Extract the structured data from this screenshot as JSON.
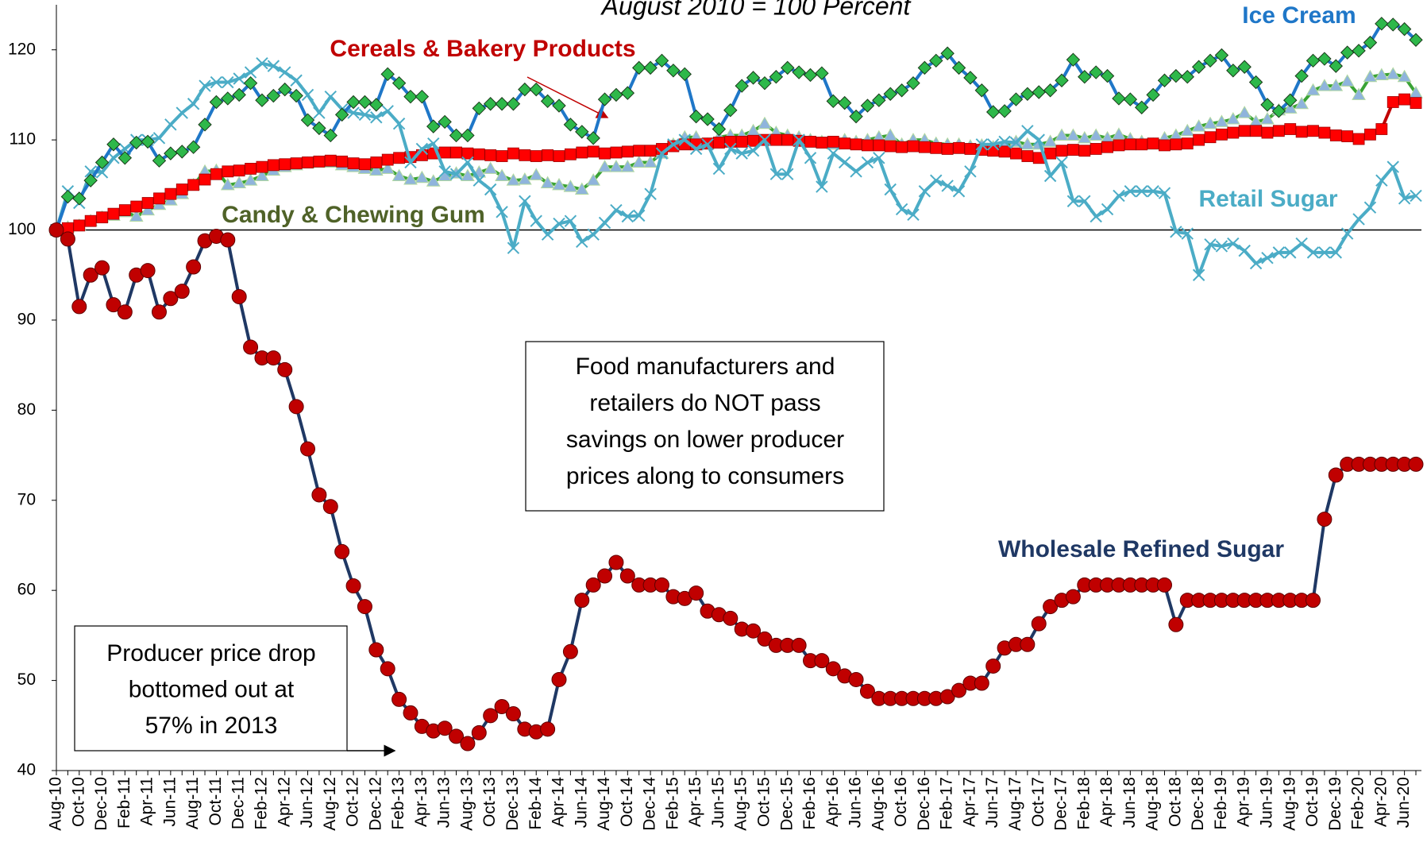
{
  "chart_data": {
    "type": "line",
    "title": "August 2010 = 100 Percent",
    "categories": [
      "Aug-10",
      null,
      "Oct-10",
      null,
      "Dec-10",
      null,
      "Feb-11",
      null,
      "Apr-11",
      null,
      "Jun-11",
      null,
      "Aug-11",
      null,
      "Oct-11",
      null,
      "Dec-11",
      null,
      "Feb-12",
      null,
      "Apr-12",
      null,
      "Jun-12",
      null,
      "Aug-12",
      null,
      "Oct-12",
      null,
      "Dec-12",
      null,
      "Feb-13",
      null,
      "Apr-13",
      null,
      "Jun-13",
      null,
      "Aug-13",
      null,
      "Oct-13",
      null,
      "Dec-13",
      null,
      "Feb-14",
      null,
      "Apr-14",
      null,
      "Jun-14",
      null,
      "Aug-14",
      null,
      "Oct-14",
      null,
      "Dec-14",
      null,
      "Feb-15",
      null,
      "Apr-15",
      null,
      "Jun-15",
      null,
      "Aug-15",
      null,
      "Oct-15",
      null,
      "Dec-15",
      null,
      "Feb-16",
      null,
      "Apr-16",
      null,
      "Jun-16",
      null,
      "Aug-16",
      null,
      "Oct-16",
      null,
      "Dec-16",
      null,
      "Feb-17",
      null,
      "Apr-17",
      null,
      "Jun-17",
      null,
      "Aug-17",
      null,
      "Oct-17",
      null,
      "Dec-17",
      null,
      "Feb-18",
      null,
      "Apr-18",
      null,
      "Jun-18",
      null,
      "Aug-18",
      null,
      "Oct-18",
      null,
      "Dec-18",
      null,
      "Feb-19",
      null,
      "Apr-19",
      null,
      "Jun-19",
      null,
      "Aug-19",
      null,
      "Oct-19",
      null,
      "Dec-19",
      null,
      "Feb-20",
      null,
      "Apr-20",
      null,
      "Jun-20",
      null
    ],
    "series": [
      {
        "name": "Candy & Chewing Gum",
        "color": "#3aa335",
        "marker_color": "#8fb4dc",
        "marker": "triangle",
        "label_color": "#4f6228",
        "values": [
          100,
          100.3,
          100.5,
          101,
          101.4,
          101.6,
          102,
          101.5,
          102.2,
          102.8,
          103.3,
          104,
          105,
          106.5,
          106.6,
          105,
          105.2,
          105.5,
          106,
          106.6,
          107,
          107.2,
          107.4,
          107.5,
          107.5,
          107.2,
          107,
          106.8,
          106.6,
          106.8,
          106,
          105.6,
          105.8,
          105.4,
          106,
          106.3,
          106,
          106.4,
          106.8,
          106,
          105.5,
          105.6,
          106.1,
          105.2,
          105,
          104.8,
          104.5,
          105.5,
          107,
          107,
          107,
          107.5,
          107.5,
          108.5,
          109.5,
          110.3,
          110.3,
          109.5,
          110.3,
          110.5,
          110.5,
          111,
          111.8,
          110.8,
          110.5,
          110.3,
          110,
          109.8,
          109.5,
          110,
          109.8,
          110,
          110.3,
          110.5,
          109.5,
          110,
          110,
          109.6,
          109.5,
          109.5,
          109.3,
          109.4,
          109.2,
          109.3,
          109.8,
          109.5,
          109.5,
          109.8,
          110.5,
          110.5,
          110.2,
          110.5,
          110.2,
          110.6,
          110.1,
          109.8,
          109.5,
          110.2,
          110.5,
          111,
          111.5,
          111.8,
          112,
          112.3,
          113,
          112,
          112.3,
          113.3,
          113.5,
          114,
          115.5,
          116,
          116,
          116.5,
          115,
          117,
          117.2,
          117.3,
          117,
          115.2
        ]
      },
      {
        "name": "Cereals & Bakery Products",
        "color": "#c00000",
        "marker_color": "#ff0000",
        "marker": "square",
        "label_color": "#c00000",
        "values": [
          100,
          100.2,
          100.5,
          101,
          101.4,
          101.8,
          102.2,
          102.6,
          103,
          103.5,
          104,
          104.5,
          105,
          105.6,
          106.2,
          106.5,
          106.6,
          106.8,
          107,
          107.2,
          107.3,
          107.4,
          107.5,
          107.6,
          107.7,
          107.6,
          107.4,
          107.3,
          107.5,
          107.8,
          108,
          108.1,
          108.3,
          108.5,
          108.6,
          108.6,
          108.5,
          108.4,
          108.3,
          108.2,
          108.5,
          108.3,
          108.2,
          108.3,
          108.2,
          108.4,
          108.6,
          108.7,
          108.5,
          108.6,
          108.7,
          108.8,
          108.8,
          109,
          109.3,
          109.5,
          109.5,
          109.6,
          109.7,
          109.8,
          109.8,
          109.9,
          110,
          110,
          110,
          109.9,
          109.8,
          109.7,
          109.8,
          109.6,
          109.5,
          109.4,
          109.4,
          109.3,
          109.2,
          109.3,
          109.2,
          109.1,
          109,
          109.1,
          109,
          108.9,
          108.8,
          108.7,
          108.5,
          108.2,
          108,
          108.5,
          108.8,
          108.9,
          108.8,
          109,
          109.2,
          109.4,
          109.5,
          109.5,
          109.6,
          109.4,
          109.5,
          109.6,
          110,
          110.3,
          110.6,
          110.8,
          111,
          111,
          110.8,
          111,
          111.2,
          110.9,
          111,
          110.8,
          110.5,
          110.4,
          110.1,
          110.6,
          111.2,
          114.2,
          114.5,
          114.1
        ]
      },
      {
        "name": "Retail Sugar",
        "color": "#4bacc6",
        "marker_color": "#4bacc6",
        "marker": "x",
        "label_color": "#4bacc6",
        "values": [
          100,
          104.3,
          103,
          106.5,
          106.4,
          108,
          109,
          110,
          110,
          110.2,
          111.7,
          113,
          114,
          116,
          116.4,
          116.4,
          116.8,
          117.5,
          118.5,
          118.2,
          117.5,
          116.6,
          115,
          113,
          114.8,
          113.4,
          113,
          112.8,
          112.5,
          113.2,
          111.8,
          107.5,
          109,
          109.6,
          106.5,
          106.2,
          107.5,
          105.5,
          104.5,
          102,
          98,
          103.2,
          101,
          99.5,
          100.7,
          101,
          98.7,
          99.5,
          100.8,
          102.2,
          101.5,
          101.6,
          104,
          108.5,
          109.5,
          110,
          109,
          109.5,
          106.8,
          109,
          108.5,
          108.8,
          110,
          106.2,
          106.2,
          110,
          108,
          104.8,
          108.5,
          107.5,
          106.5,
          107.5,
          108,
          104.5,
          102.3,
          101.7,
          104.3,
          105.5,
          104.9,
          104.3,
          106.5,
          109.5,
          109.5,
          109.8,
          109.7,
          111,
          110,
          106,
          107.5,
          103.2,
          103.2,
          101.5,
          102.3,
          103.8,
          104.3,
          104.3,
          104.3,
          104.1,
          99.8,
          99.6,
          95,
          98.4,
          98.2,
          98.5,
          97.7,
          96.3,
          96.9,
          97.5,
          97.5,
          98.5,
          97.5,
          97.5,
          97.5,
          99.6,
          101.2,
          102.5,
          105.5,
          107,
          103.5,
          103.8
        ]
      },
      {
        "name": "Ice Cream",
        "color": "#1f77c8",
        "marker_color": "#2eb84a",
        "marker": "diamond",
        "label_color": "#1f77c8",
        "values": [
          100,
          103.7,
          103.5,
          105.5,
          107.5,
          109.5,
          108,
          109.7,
          109.8,
          107.7,
          108.5,
          108.7,
          109.2,
          111.7,
          114.2,
          114.6,
          115,
          116.3,
          114.4,
          114.9,
          115.6,
          114.9,
          112.2,
          111.3,
          110.5,
          112.8,
          114.2,
          114.2,
          113.9,
          117.3,
          116.3,
          114.8,
          114.8,
          111.5,
          112,
          110.5,
          110.5,
          113.5,
          114,
          114,
          114,
          115.6,
          115.6,
          114.3,
          113.8,
          111.7,
          110.9,
          110.2,
          114.5,
          115,
          115.2,
          118,
          118,
          118.8,
          117.7,
          117.3,
          112.6,
          112.3,
          111.2,
          113.3,
          116,
          116.9,
          116.3,
          117,
          118,
          117.5,
          117.2,
          117.4,
          114.3,
          114.1,
          112.6,
          113.8,
          114.4,
          115.1,
          115.5,
          116.3,
          118,
          118.8,
          119.6,
          118,
          116.9,
          115.5,
          113.1,
          113.2,
          114.5,
          115.1,
          115.3,
          115.5,
          116.6,
          118.9,
          117,
          117.5,
          117.1,
          114.6,
          114.5,
          113.6,
          115,
          116.6,
          117.1,
          117,
          118.1,
          118.8,
          119.4,
          117.7,
          118.1,
          116.4,
          113.9,
          113.2,
          114.4,
          117.1,
          118.8,
          119,
          118.2,
          119.7,
          119.9,
          120.8,
          122.9,
          122.8,
          122.3,
          121.1
        ]
      },
      {
        "name": "Wholesale Refined Sugar",
        "color": "#1f3864",
        "marker_color": "#c00000",
        "marker": "circle",
        "label_color": "#1f3864",
        "values": [
          100,
          99,
          91.5,
          95,
          95.8,
          91.7,
          90.9,
          95,
          95.5,
          90.9,
          92.4,
          93.2,
          95.9,
          98.8,
          99.3,
          98.9,
          92.6,
          87,
          85.8,
          85.8,
          84.5,
          80.4,
          75.7,
          70.6,
          69.3,
          64.3,
          60.5,
          58.2,
          53.4,
          51.3,
          47.9,
          46.4,
          44.9,
          44.4,
          44.7,
          43.8,
          43,
          44.2,
          46.1,
          47.1,
          46.3,
          44.6,
          44.3,
          44.6,
          50.1,
          53.2,
          58.9,
          60.6,
          61.6,
          63.1,
          61.6,
          60.6,
          60.6,
          60.6,
          59.3,
          59.1,
          59.7,
          57.7,
          57.3,
          56.9,
          55.7,
          55.5,
          54.6,
          53.9,
          53.9,
          53.9,
          52.2,
          52.2,
          51.3,
          50.5,
          50.1,
          48.8,
          48,
          48,
          48,
          48,
          48,
          48,
          48.2,
          48.9,
          49.7,
          49.7,
          51.6,
          53.6,
          54,
          54,
          56.3,
          58.2,
          58.9,
          59.3,
          60.6,
          60.6,
          60.6,
          60.6,
          60.6,
          60.6,
          60.6,
          60.6,
          56.2,
          58.9,
          58.9,
          58.9,
          58.9,
          58.9,
          58.9,
          58.9,
          58.9,
          58.9,
          58.9,
          58.9,
          58.9,
          67.9,
          72.8,
          74,
          74,
          74,
          74,
          74,
          74,
          74
        ]
      }
    ],
    "ylim": [
      40,
      125
    ],
    "yticks": [
      40,
      50,
      60,
      70,
      80,
      90,
      100,
      110,
      120
    ],
    "hline": 100,
    "annotations": [
      [
        "Food manufacturers and",
        "retailers do NOT pass",
        "savings on lower producer",
        "prices along to consumers"
      ],
      [
        "Producer price drop",
        "bottomed out at",
        "57%  in 2013"
      ]
    ]
  }
}
